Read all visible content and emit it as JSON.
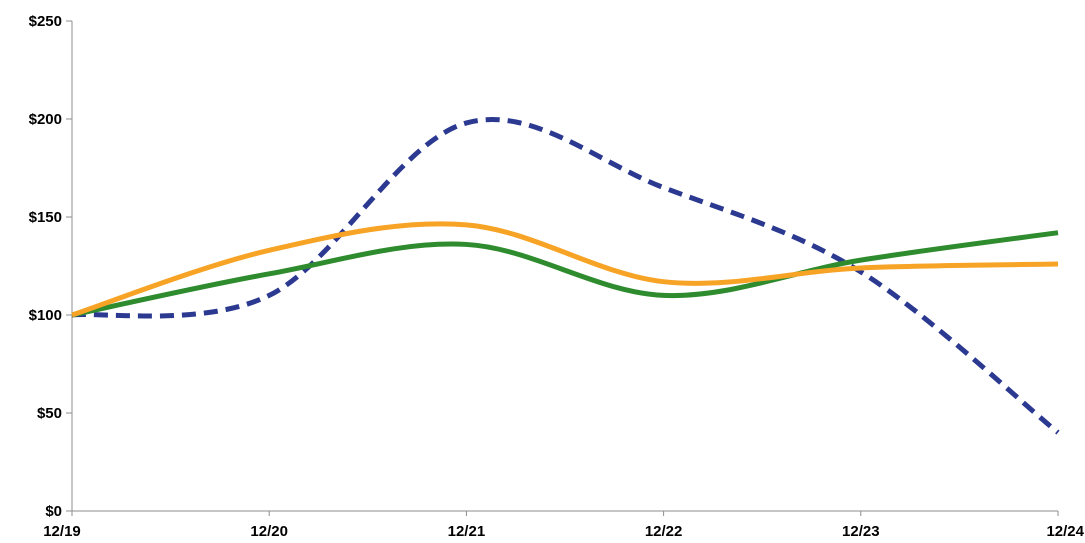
{
  "chart_data": {
    "type": "line",
    "title": "",
    "xlabel": "",
    "ylabel": "",
    "categories": [
      "12/19",
      "12/20",
      "12/21",
      "12/22",
      "12/23",
      "12/24"
    ],
    "ylim": [
      0,
      250
    ],
    "yticks": [
      0,
      50,
      100,
      150,
      200,
      250
    ],
    "ytick_labels": [
      "$0",
      "$50",
      "$100",
      "$150",
      "$200",
      "$250"
    ],
    "grid": false,
    "legend": "none",
    "smooth": true,
    "series": [
      {
        "values": [
          100,
          110,
          198,
          165,
          122,
          40
        ],
        "color": "#2b3990",
        "style": "dashed"
      },
      {
        "values": [
          100,
          121,
          136,
          110,
          128,
          142
        ],
        "color": "#2e8b2e",
        "style": "solid"
      },
      {
        "values": [
          100,
          133,
          146,
          117,
          124,
          126
        ],
        "color": "#f7a325",
        "style": "solid"
      }
    ]
  }
}
